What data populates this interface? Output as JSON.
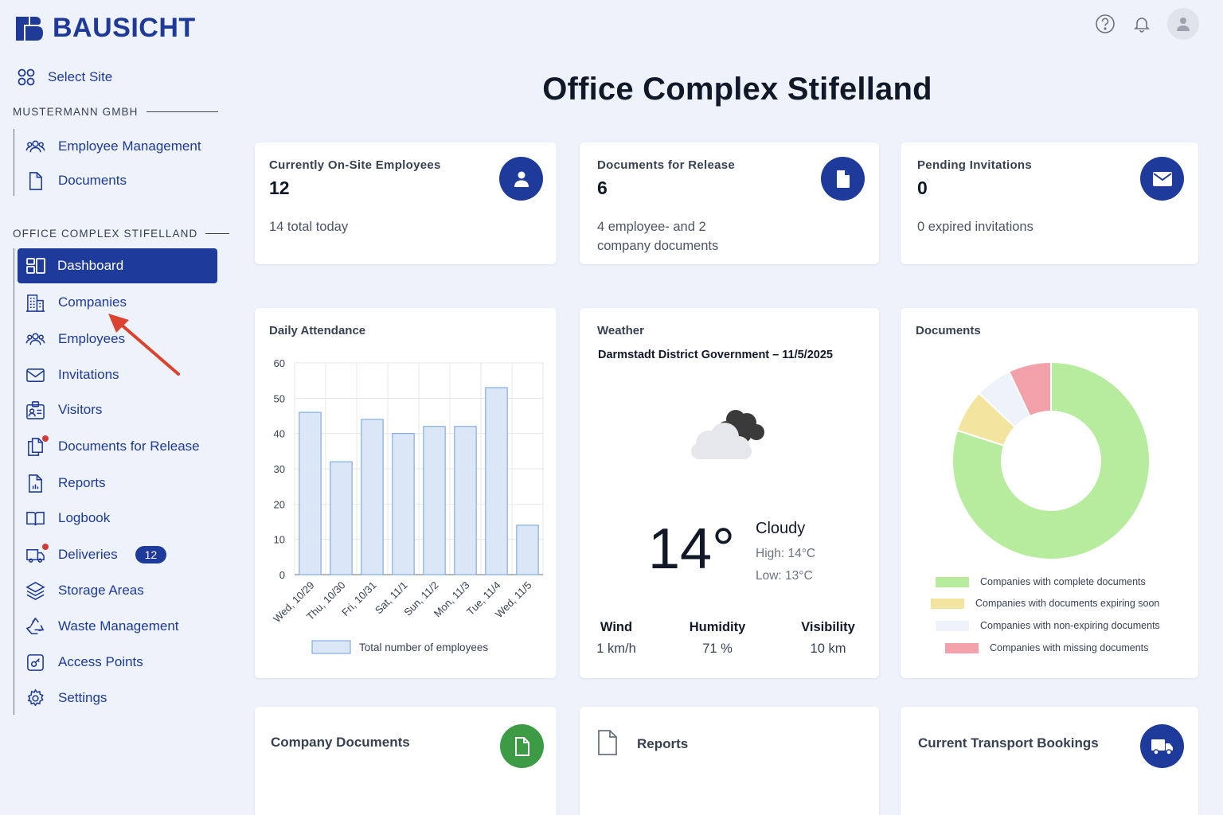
{
  "brand": {
    "name": "BAUSICHT"
  },
  "sidebar": {
    "select_site": "Select Site",
    "group1": {
      "label": "MUSTERMANN GMBH",
      "items": [
        {
          "label": "Employee Management",
          "icon": "users-icon"
        },
        {
          "label": "Documents",
          "icon": "document-icon"
        }
      ]
    },
    "group2": {
      "label": "OFFICE COMPLEX STIFELLAND",
      "items": [
        {
          "label": "Dashboard",
          "icon": "dashboard-icon",
          "active": true
        },
        {
          "label": "Companies",
          "icon": "building-icon"
        },
        {
          "label": "Employees",
          "icon": "users-icon"
        },
        {
          "label": "Invitations",
          "icon": "mail-icon"
        },
        {
          "label": "Visitors",
          "icon": "visitor-badge-icon"
        },
        {
          "label": "Documents for Release",
          "icon": "documents-copy-icon",
          "dot": true
        },
        {
          "label": "Reports",
          "icon": "report-icon"
        },
        {
          "label": "Logbook",
          "icon": "book-icon"
        },
        {
          "label": "Deliveries",
          "icon": "truck-icon",
          "dot": true,
          "badge": "12"
        },
        {
          "label": "Storage Areas",
          "icon": "layers-icon"
        },
        {
          "label": "Waste Management",
          "icon": "recycle-icon"
        },
        {
          "label": "Access Points",
          "icon": "access-key-icon"
        },
        {
          "label": "Settings",
          "icon": "gear-icon"
        }
      ]
    }
  },
  "header": {
    "title": "Office Complex Stifelland"
  },
  "stats": [
    {
      "label": "Currently On-Site Employees",
      "value": "12",
      "sub": "14 total today",
      "icon": "user-icon"
    },
    {
      "label": "Documents for Release",
      "value": "6",
      "sub": "4 employee- and 2 company documents",
      "icon": "file-icon"
    },
    {
      "label": "Pending Invitations",
      "value": "0",
      "sub": "0 expired invitations",
      "icon": "envelope-icon"
    }
  ],
  "attendance": {
    "title": "Daily Attendance",
    "chart_data": {
      "type": "bar",
      "title": "Daily Attendance",
      "categories": [
        "Wed, 10/29",
        "Thu, 10/30",
        "Fri, 10/31",
        "Sat, 11/1",
        "Sun, 11/2",
        "Mon, 11/3",
        "Tue, 11/4",
        "Wed, 11/5"
      ],
      "series": [
        {
          "name": "Total number of employees",
          "values": [
            46,
            32,
            44,
            40,
            42,
            42,
            53,
            14
          ]
        }
      ],
      "ylim": [
        0,
        60
      ],
      "yticks": [
        0,
        10,
        20,
        30,
        40,
        50,
        60
      ],
      "grid": true,
      "legend": "bottom",
      "colors": {
        "fill": "#dbe7f7",
        "stroke": "#6f9fd8"
      }
    }
  },
  "weather": {
    "title": "Weather",
    "location": "Darmstadt District Government – 11/5/2025",
    "temp": "14°",
    "condition": "Cloudy",
    "high": "High: 14°C",
    "low": "Low: 13°C",
    "wind": {
      "label": "Wind",
      "value": "1 km/h"
    },
    "humidity": {
      "label": "Humidity",
      "value": "71 %"
    },
    "visibility": {
      "label": "Visibility",
      "value": "10 km"
    },
    "icon": "cloudy-icon"
  },
  "documents": {
    "title": "Documents",
    "chart_data": {
      "type": "pie",
      "donut": true,
      "labels": [
        "Companies with complete documents",
        "Companies with documents expiring soon",
        "Companies with non-expiring documents",
        "Companies with missing documents"
      ],
      "values": [
        80,
        7,
        6,
        7
      ],
      "colors": [
        "#b7ec9f",
        "#f3e4a0",
        "#eef2fb",
        "#f2a1ab"
      ],
      "legend": "bottom"
    }
  },
  "bottom_cards": [
    {
      "title": "Company Documents",
      "icon": "file-icon"
    },
    {
      "title": "Reports",
      "icon": "document-outline-icon"
    },
    {
      "title": "Current Transport Bookings",
      "icon": "truck-icon"
    }
  ]
}
